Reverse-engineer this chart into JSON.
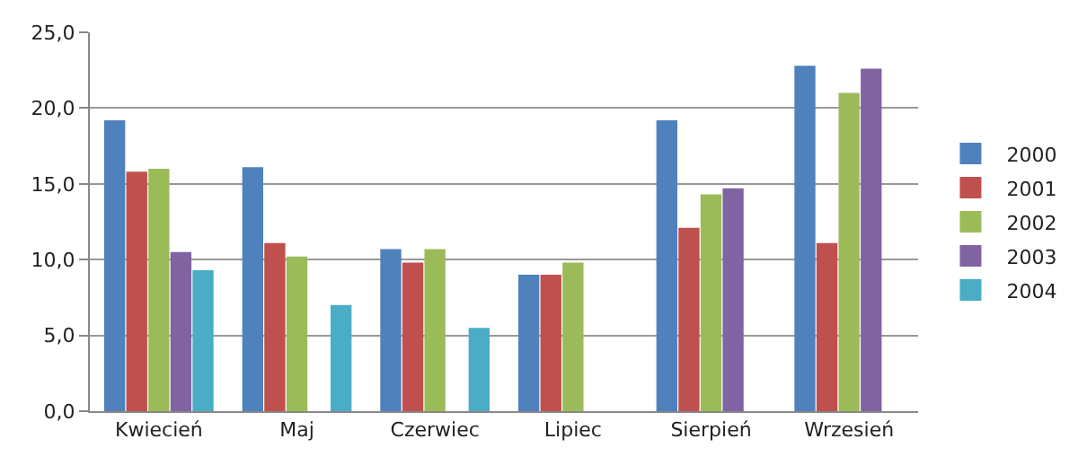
{
  "chart_data": {
    "type": "bar",
    "categories": [
      "Kwiecień",
      "Maj",
      "Czerwiec",
      "Lipiec",
      "Sierpień",
      "Wrzesień"
    ],
    "series": [
      {
        "name": "2000",
        "color": "#4f81bd",
        "values": [
          19.2,
          16.1,
          10.7,
          9.0,
          19.2,
          22.8
        ]
      },
      {
        "name": "2001",
        "color": "#c0504d",
        "values": [
          15.8,
          11.1,
          9.8,
          9.0,
          12.1,
          11.1
        ]
      },
      {
        "name": "2002",
        "color": "#9bbb59",
        "values": [
          16.0,
          10.2,
          10.7,
          9.8,
          14.3,
          21.0
        ]
      },
      {
        "name": "2003",
        "color": "#8064a2",
        "values": [
          10.5,
          null,
          null,
          null,
          14.7,
          22.6
        ]
      },
      {
        "name": "2004",
        "color": "#4bacc6",
        "values": [
          9.3,
          7.0,
          5.5,
          null,
          null,
          null
        ]
      }
    ],
    "ylim": [
      0,
      25
    ],
    "yticks": [
      {
        "value": 0,
        "label": "0,0"
      },
      {
        "value": 5,
        "label": "5,0"
      },
      {
        "value": 10,
        "label": "10,0"
      },
      {
        "value": 15,
        "label": "15,0"
      },
      {
        "value": 20,
        "label": "20,0"
      },
      {
        "value": 25,
        "label": "25,0"
      }
    ],
    "grid": "y",
    "legend": "right"
  }
}
